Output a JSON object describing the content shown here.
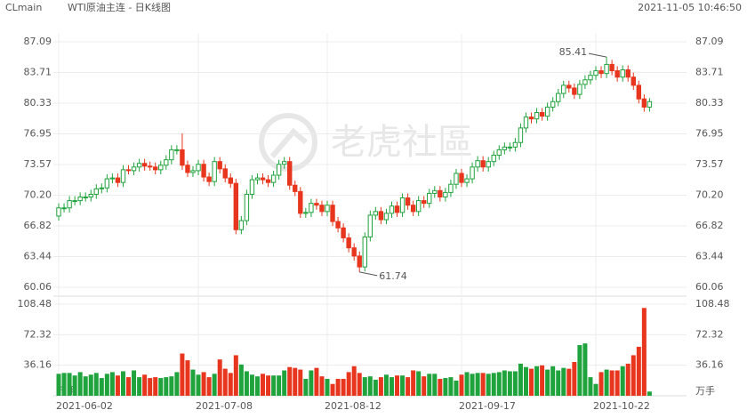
{
  "chart_data": {
    "type": "candlestick",
    "symbol": "CLmain",
    "title": "WTI原油主连 - 日K线图",
    "timestamp": "2021-11-05 10:46:50",
    "watermark": "老虎社區",
    "volume_unit": "万手",
    "up_color": "#1fa33d",
    "down_color": "#e8351d",
    "grid": true,
    "categories": [
      "2021-06-02",
      null,
      null,
      null,
      null,
      null,
      null,
      null,
      null,
      null,
      null,
      null,
      null,
      null,
      null,
      null,
      null,
      null,
      null,
      null,
      null,
      null,
      null,
      null,
      null,
      null,
      "2021-07-08",
      null,
      null,
      null,
      null,
      null,
      null,
      null,
      null,
      null,
      null,
      null,
      null,
      null,
      null,
      null,
      null,
      null,
      null,
      null,
      null,
      null,
      null,
      null,
      "2021-08-12",
      null,
      null,
      null,
      null,
      null,
      null,
      null,
      null,
      null,
      null,
      null,
      null,
      null,
      null,
      null,
      null,
      null,
      null,
      null,
      null,
      null,
      null,
      null,
      null,
      "2021-09-17",
      null,
      null,
      null,
      null,
      null,
      null,
      null,
      null,
      null,
      null,
      null,
      null,
      null,
      null,
      null,
      null,
      null,
      null,
      null,
      null,
      null,
      null,
      null,
      null,
      "2021-10-22",
      null,
      null,
      null,
      null,
      null,
      null,
      null,
      null,
      null,
      null
    ],
    "open": [
      67.9,
      68.8,
      68.8,
      69.6,
      69.6,
      70.0,
      70.0,
      70.3,
      70.9,
      71.0,
      72.0,
      72.1,
      71.6,
      73.0,
      72.9,
      73.3,
      73.7,
      73.4,
      73.3,
      73.0,
      73.5,
      74.1,
      75.2,
      75.2,
      73.5,
      72.7,
      72.9,
      73.6,
      72.2,
      71.7,
      73.9,
      73.1,
      72.1,
      71.5,
      66.4,
      67.4,
      70.3,
      71.9,
      72.1,
      71.9,
      71.6,
      72.4,
      73.6,
      73.9,
      71.3,
      70.6,
      68.2,
      68.3,
      69.3,
      69.1,
      68.4,
      69.1,
      67.3,
      66.6,
      65.5,
      64.4,
      63.5,
      62.3,
      65.6,
      68.0,
      68.4,
      67.5,
      68.2,
      69.0,
      68.3,
      69.9,
      69.1,
      68.4,
      69.6,
      69.3,
      70.4,
      70.7,
      70.0,
      70.5,
      71.4,
      72.6,
      71.6,
      72.0,
      73.3,
      74.0,
      73.3,
      73.9,
      74.6,
      75.2,
      75.5,
      75.5,
      76.0,
      77.6,
      78.8,
      78.6,
      79.3,
      78.9,
      79.9,
      80.5,
      81.4,
      82.3,
      82.0,
      81.3,
      82.4,
      82.9,
      83.4,
      83.9,
      83.6,
      84.6,
      83.9,
      83.2,
      84.0,
      83.2,
      82.3,
      80.8,
      79.9
    ],
    "high": [
      69.3,
      69.3,
      70.1,
      70.1,
      70.5,
      70.5,
      70.8,
      71.4,
      71.5,
      72.5,
      72.6,
      72.6,
      73.5,
      73.5,
      73.8,
      74.2,
      74.2,
      73.9,
      73.8,
      74.0,
      74.6,
      75.7,
      75.7,
      77.0,
      74.0,
      73.4,
      74.1,
      74.1,
      72.7,
      74.4,
      74.4,
      73.6,
      72.6,
      72.0,
      67.9,
      70.8,
      72.4,
      72.6,
      72.6,
      72.4,
      72.9,
      74.1,
      74.4,
      74.4,
      71.8,
      71.1,
      68.8,
      69.8,
      69.8,
      69.6,
      69.6,
      69.6,
      67.8,
      67.1,
      66.0,
      64.9,
      64.0,
      66.1,
      68.5,
      68.9,
      68.9,
      68.7,
      69.5,
      69.5,
      70.4,
      70.4,
      69.6,
      70.1,
      70.1,
      70.9,
      71.2,
      71.2,
      71.0,
      71.9,
      73.1,
      73.1,
      72.5,
      73.8,
      74.5,
      74.5,
      74.4,
      75.1,
      75.7,
      76.0,
      76.0,
      76.5,
      78.1,
      79.3,
      79.3,
      79.8,
      79.8,
      80.4,
      81.0,
      81.9,
      82.8,
      82.8,
      82.5,
      82.9,
      83.4,
      83.9,
      84.4,
      84.4,
      85.41,
      85.1,
      84.4,
      84.5,
      84.5,
      83.7,
      82.8,
      81.3,
      80.9
    ],
    "low": [
      67.4,
      68.3,
      68.3,
      69.1,
      69.1,
      69.5,
      69.5,
      69.8,
      70.4,
      70.5,
      71.5,
      71.1,
      71.1,
      72.5,
      72.4,
      72.8,
      72.9,
      72.9,
      72.5,
      72.5,
      73.0,
      73.6,
      74.7,
      73.0,
      72.2,
      72.2,
      72.4,
      71.7,
      71.2,
      71.2,
      72.6,
      71.6,
      71.0,
      65.9,
      65.9,
      66.9,
      69.8,
      71.4,
      71.4,
      71.1,
      71.1,
      71.9,
      73.1,
      70.8,
      70.1,
      67.7,
      67.7,
      67.8,
      68.6,
      67.9,
      67.9,
      66.8,
      66.1,
      65.0,
      63.9,
      63.0,
      61.74,
      61.8,
      65.1,
      67.5,
      67.0,
      67.0,
      67.7,
      67.8,
      67.8,
      68.6,
      67.9,
      67.9,
      68.8,
      68.8,
      69.9,
      69.5,
      69.5,
      70.0,
      70.9,
      71.1,
      71.1,
      71.5,
      72.8,
      72.8,
      72.8,
      73.4,
      74.1,
      74.7,
      75.0,
      75.0,
      75.5,
      77.1,
      78.1,
      78.1,
      78.4,
      78.4,
      79.4,
      80.0,
      80.9,
      81.5,
      80.8,
      80.8,
      81.9,
      82.4,
      82.9,
      83.1,
      83.1,
      83.4,
      82.7,
      82.7,
      82.7,
      81.8,
      80.3,
      79.4,
      79.4
    ],
    "close": [
      68.8,
      68.8,
      69.6,
      69.6,
      70.0,
      70.0,
      70.3,
      70.9,
      71.0,
      72.0,
      72.1,
      71.6,
      73.0,
      72.9,
      73.3,
      73.7,
      73.4,
      73.3,
      73.0,
      73.5,
      74.1,
      75.2,
      75.2,
      73.5,
      72.7,
      72.9,
      73.6,
      72.2,
      71.7,
      73.9,
      73.1,
      72.1,
      71.5,
      66.4,
      67.4,
      70.3,
      71.9,
      72.1,
      71.9,
      71.6,
      72.4,
      73.6,
      73.9,
      71.3,
      70.6,
      68.2,
      68.3,
      69.3,
      69.1,
      68.4,
      69.1,
      67.3,
      66.6,
      65.5,
      64.4,
      63.5,
      62.3,
      65.6,
      68.0,
      68.4,
      67.5,
      68.2,
      69.0,
      68.3,
      69.9,
      69.1,
      68.4,
      69.6,
      69.3,
      70.4,
      70.7,
      70.0,
      70.5,
      71.4,
      72.6,
      71.6,
      72.0,
      73.3,
      74.0,
      73.3,
      73.9,
      74.6,
      75.2,
      75.5,
      75.5,
      76.0,
      77.6,
      78.8,
      78.6,
      79.3,
      78.9,
      79.9,
      80.5,
      81.4,
      82.3,
      82.0,
      81.3,
      82.4,
      82.9,
      83.4,
      83.9,
      83.6,
      84.6,
      83.9,
      83.2,
      84.0,
      83.2,
      82.3,
      80.8,
      79.9,
      80.5
    ],
    "volume": [
      26,
      27,
      27,
      24,
      28,
      23,
      25,
      27,
      21,
      26,
      28,
      24,
      29,
      22,
      30,
      22,
      25,
      21,
      22,
      21,
      22,
      23,
      28,
      50,
      42,
      31,
      25,
      28,
      22,
      26,
      43,
      32,
      27,
      48,
      37,
      29,
      25,
      23,
      26,
      24,
      24,
      24,
      30,
      34,
      33,
      31,
      20,
      30,
      33,
      23,
      20,
      14,
      20,
      20,
      28,
      35,
      27,
      22,
      23,
      19,
      22,
      25,
      22,
      24,
      24,
      22,
      30,
      29,
      23,
      26,
      26,
      20,
      21,
      22,
      18,
      25,
      28,
      26,
      27,
      27,
      26,
      27,
      28,
      30,
      29,
      29,
      38,
      34,
      32,
      35,
      36,
      31,
      35,
      30,
      33,
      32,
      40,
      60,
      62,
      22,
      14,
      28,
      31,
      30,
      30,
      35,
      38,
      48,
      58,
      104,
      5
    ],
    "ylim": [
      60.06,
      87.09
    ],
    "yticks": [
      60.06,
      63.44,
      66.82,
      {
        "value": 70.2,
        "label": "70.20"
      },
      73.57,
      76.95,
      80.33,
      83.71,
      87.09
    ],
    "vol_ylim": [
      0,
      108.48
    ],
    "vol_ticks": [
      36.16,
      72.32,
      108.48
    ]
  }
}
